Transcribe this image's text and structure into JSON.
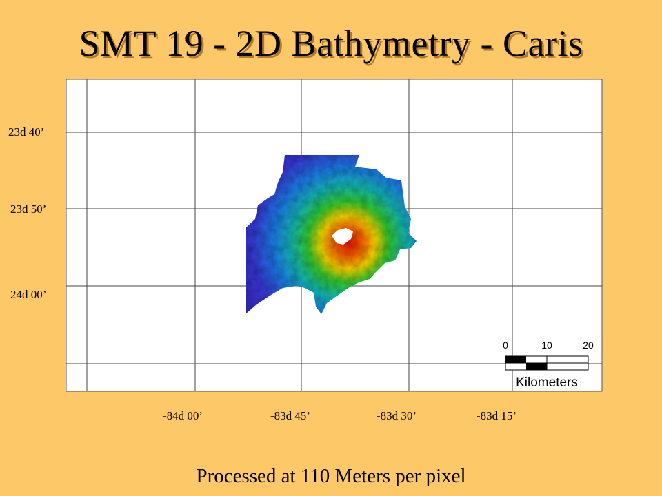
{
  "title": "SMT 19 - 2D Bathymetry - Caris",
  "latitude_labels": [
    "23d 40’",
    "23d 50’",
    "24d 00’"
  ],
  "longitude_labels": [
    "-84d 00’",
    "-83d 45’",
    "-83d 30’",
    "-83d 15’"
  ],
  "scale_bar": {
    "ticks": [
      "0",
      "10",
      "20"
    ],
    "unit": "Kilometers"
  },
  "caption": "Processed at 110 Meters per pixel",
  "colors": {
    "background": "#fdc868",
    "deep": "#3a2ed0",
    "shallow": "#e8101a"
  }
}
